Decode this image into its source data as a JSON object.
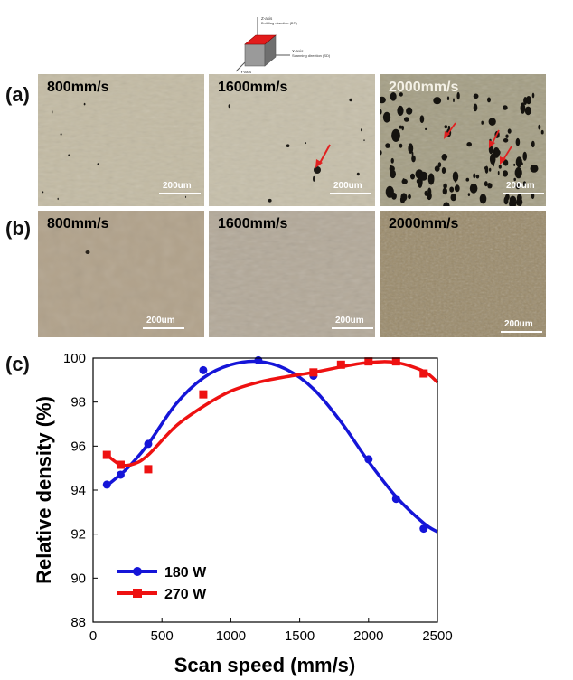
{
  "diagram": {
    "z_axis": "Z-axis",
    "z_desc": "Building direction (BD)",
    "x_axis": "X-axis",
    "x_desc": "Scanning direction (SD)",
    "y_axis": "Y-axis"
  },
  "row_a": {
    "label": "(a)",
    "panels": [
      {
        "speed": "800mm/s",
        "scale": "200um"
      },
      {
        "speed": "1600mm/s",
        "scale": "200um"
      },
      {
        "speed": "2000mm/s",
        "scale": "200um"
      }
    ]
  },
  "row_b": {
    "label": "(b)",
    "panels": [
      {
        "speed": "800mm/s",
        "scale": "200um"
      },
      {
        "speed": "1600mm/s",
        "scale": "200um"
      },
      {
        "speed": "2000mm/s",
        "scale": "200um"
      }
    ]
  },
  "chart_label": "(c)",
  "colors": {
    "series_180": "#1515d8",
    "series_270": "#ee1111",
    "arrow": "#e02020"
  },
  "chart_data": {
    "type": "scatter",
    "xlabel": "Scan speed (mm/s)",
    "ylabel": "Relative density (%)",
    "xlim": [
      0,
      2500
    ],
    "ylim": [
      88,
      100
    ],
    "xticks": [
      "0",
      "500",
      "1000",
      "1500",
      "2000",
      "2500"
    ],
    "yticks": [
      "88",
      "90",
      "92",
      "94",
      "96",
      "98",
      "100"
    ],
    "legend_position": "bottom-left",
    "series": [
      {
        "name": "180 W",
        "marker": "circle",
        "color": "#1515d8",
        "x": [
          100,
          200,
          400,
          800,
          1200,
          1600,
          2000,
          2200,
          2400
        ],
        "y": [
          94.25,
          94.7,
          96.1,
          99.45,
          99.9,
          99.2,
          95.4,
          93.6,
          92.25
        ]
      },
      {
        "name": "270 W",
        "marker": "square",
        "color": "#ee1111",
        "x": [
          100,
          200,
          400,
          800,
          1600,
          1800,
          2000,
          2200,
          2400
        ],
        "y": [
          95.6,
          95.15,
          94.95,
          98.35,
          99.35,
          99.7,
          99.85,
          99.85,
          99.3
        ]
      }
    ]
  }
}
